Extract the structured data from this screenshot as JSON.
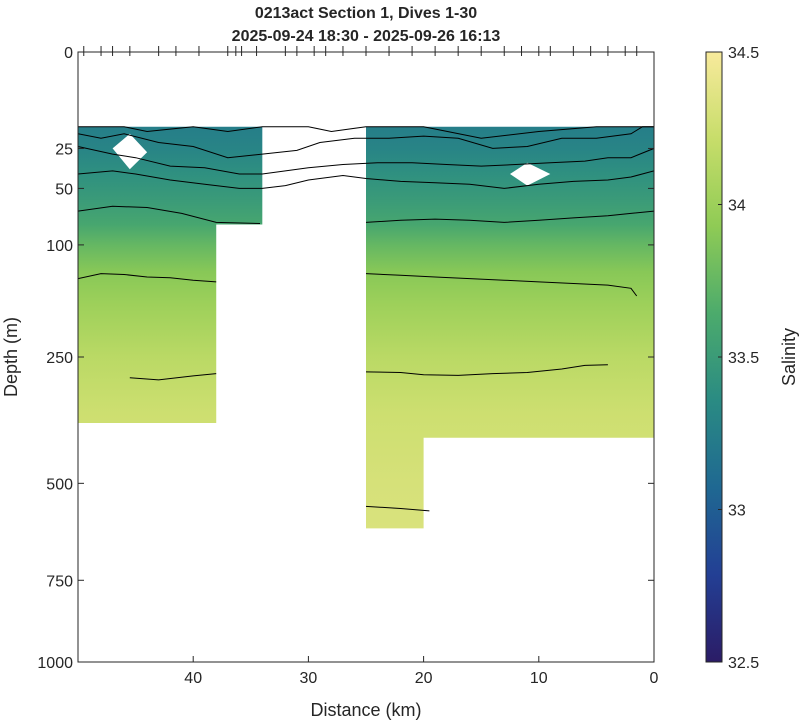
{
  "chart_data": {
    "type": "heatmap",
    "title_lines": [
      "0213act Section 1, Dives 1-30",
      "2025-09-24 18:30 - 2025-09-26 16:13"
    ],
    "xlabel": "Distance (km)",
    "ylabel": "Depth (m)",
    "colorbar_label": "Salinity",
    "xlim": [
      50,
      0
    ],
    "ylim": [
      0,
      1000
    ],
    "y_scale": "sqrt",
    "x_ticks": [
      40,
      30,
      20,
      10,
      0
    ],
    "y_ticks": [
      0,
      25,
      50,
      100,
      250,
      500,
      750,
      1000
    ],
    "clim": [
      32.5,
      34.5
    ],
    "colorbar_ticks": [
      32.5,
      33,
      33.5,
      34,
      34.5
    ],
    "colormap": [
      "#2b1c66",
      "#233f94",
      "#1f6892",
      "#2a8b83",
      "#4cab6c",
      "#8fcb55",
      "#c7dd6a",
      "#f8ea9c"
    ],
    "dive_marker_distances_km": [
      49.5,
      48,
      47,
      45.5,
      43,
      41.5,
      39.5,
      37,
      36.3,
      35.8,
      34.5,
      32,
      31,
      29.5,
      28.5,
      27,
      25,
      23,
      21,
      19,
      17,
      15,
      13,
      11.5,
      10,
      9,
      7,
      5.5,
      4,
      2.5,
      1.5
    ],
    "data_region": [
      {
        "x_from": 50,
        "x_to": 38,
        "top_m": 15,
        "bottom_m": 370
      },
      {
        "x_from": 38,
        "x_to": 34,
        "top_m": 15,
        "bottom_m": 80
      },
      {
        "x_from": 25,
        "x_to": 20,
        "top_m": 15,
        "bottom_m": 610
      },
      {
        "x_from": 20,
        "x_to": 0,
        "top_m": 15,
        "bottom_m": 400
      }
    ],
    "salinity_profile": [
      {
        "depth_m": 15,
        "salinity": 33.25
      },
      {
        "depth_m": 25,
        "salinity": 33.3
      },
      {
        "depth_m": 40,
        "salinity": 33.4
      },
      {
        "depth_m": 60,
        "salinity": 33.5
      },
      {
        "depth_m": 80,
        "salinity": 33.6
      },
      {
        "depth_m": 100,
        "salinity": 33.75
      },
      {
        "depth_m": 130,
        "salinity": 33.9
      },
      {
        "depth_m": 170,
        "salinity": 34.0
      },
      {
        "depth_m": 250,
        "salinity": 34.15
      },
      {
        "depth_m": 350,
        "salinity": 34.25
      },
      {
        "depth_m": 500,
        "salinity": 34.3
      },
      {
        "depth_m": 610,
        "salinity": 34.32
      }
    ],
    "contours": [
      {
        "points": [
          [
            50,
            15
          ],
          [
            46,
            15
          ],
          [
            44,
            17
          ],
          [
            40,
            15
          ],
          [
            37,
            17
          ],
          [
            34,
            15
          ],
          [
            32,
            15
          ],
          [
            30,
            15
          ],
          [
            28,
            17
          ],
          [
            25,
            15
          ],
          [
            22,
            15
          ],
          [
            20,
            15
          ],
          [
            15,
            20
          ],
          [
            10,
            17
          ],
          [
            5,
            15
          ],
          [
            2,
            15
          ],
          [
            0,
            15
          ]
        ]
      },
      {
        "points": [
          [
            50,
            18
          ],
          [
            48,
            20
          ],
          [
            46,
            18
          ],
          [
            43,
            22
          ],
          [
            40,
            24
          ],
          [
            37,
            30
          ],
          [
            34,
            28
          ],
          [
            31,
            26
          ],
          [
            29,
            22
          ],
          [
            26,
            20
          ],
          [
            23,
            20
          ],
          [
            20,
            19
          ],
          [
            17,
            20
          ],
          [
            14,
            25
          ],
          [
            11,
            24
          ],
          [
            8,
            20
          ],
          [
            5,
            20
          ],
          [
            2,
            18
          ],
          [
            1,
            15
          ],
          [
            0,
            15
          ]
        ]
      },
      {
        "points": [
          [
            50,
            24
          ],
          [
            47,
            28
          ],
          [
            45,
            30
          ],
          [
            42,
            35
          ],
          [
            39,
            36
          ],
          [
            36,
            40
          ],
          [
            34,
            40
          ],
          [
            32,
            38
          ],
          [
            30,
            36
          ],
          [
            27,
            34
          ],
          [
            24,
            33
          ],
          [
            21,
            33
          ],
          [
            18,
            34
          ],
          [
            15,
            35
          ],
          [
            12,
            34
          ],
          [
            9,
            33
          ],
          [
            6,
            32
          ],
          [
            4,
            30
          ],
          [
            2,
            30
          ],
          [
            0,
            25
          ]
        ]
      },
      {
        "points": [
          [
            50,
            40
          ],
          [
            47,
            38
          ],
          [
            45,
            40
          ],
          [
            42,
            44
          ],
          [
            39,
            47
          ],
          [
            36,
            50
          ],
          [
            34,
            50
          ],
          [
            32,
            48
          ],
          [
            30,
            44
          ],
          [
            27,
            41
          ],
          [
            25,
            43
          ],
          [
            22,
            45
          ],
          [
            19,
            46
          ],
          [
            16,
            47
          ],
          [
            13,
            50
          ],
          [
            10,
            47
          ],
          [
            7,
            45
          ],
          [
            4,
            44
          ],
          [
            2,
            42
          ],
          [
            0,
            38
          ]
        ]
      },
      {
        "points": [
          [
            50,
            68
          ],
          [
            47,
            64
          ],
          [
            44,
            65
          ],
          [
            41,
            70
          ],
          [
            38,
            78
          ],
          [
            34.2,
            79
          ]
        ]
      },
      {
        "points": [
          [
            25,
            78
          ],
          [
            22,
            76
          ],
          [
            19,
            75
          ],
          [
            16,
            76
          ],
          [
            13,
            78
          ],
          [
            10,
            76
          ],
          [
            7,
            74
          ],
          [
            4,
            72
          ],
          [
            2,
            70
          ],
          [
            0,
            68
          ]
        ]
      },
      {
        "points": [
          [
            50,
            138
          ],
          [
            48,
            132
          ],
          [
            46,
            133
          ],
          [
            44,
            136
          ],
          [
            42,
            137
          ],
          [
            40,
            140
          ],
          [
            38,
            142
          ]
        ]
      },
      {
        "points": [
          [
            25,
            132
          ],
          [
            22,
            134
          ],
          [
            19,
            136
          ],
          [
            16,
            138
          ],
          [
            13,
            140
          ],
          [
            10,
            142
          ],
          [
            7,
            144
          ],
          [
            4,
            146
          ],
          [
            2,
            150
          ],
          [
            1.5,
            160
          ]
        ]
      },
      {
        "points": [
          [
            45.5,
            285
          ],
          [
            43,
            289
          ],
          [
            40,
            282
          ],
          [
            38,
            278
          ]
        ]
      },
      {
        "points": [
          [
            25,
            275
          ],
          [
            22,
            276
          ],
          [
            20,
            280
          ],
          [
            17,
            281
          ],
          [
            14,
            278
          ],
          [
            11,
            276
          ],
          [
            8,
            270
          ],
          [
            6,
            264
          ],
          [
            4,
            263
          ]
        ]
      },
      {
        "points": [
          [
            25,
            555
          ],
          [
            22,
            560
          ],
          [
            19.5,
            566
          ]
        ]
      }
    ],
    "blank_patches": [
      {
        "points": [
          [
            47,
            25
          ],
          [
            45.5,
            18
          ],
          [
            44,
            27
          ],
          [
            45.5,
            37
          ]
        ]
      },
      {
        "points": [
          [
            12.5,
            40
          ],
          [
            11,
            33
          ],
          [
            9,
            40
          ],
          [
            11,
            48
          ]
        ]
      }
    ]
  }
}
